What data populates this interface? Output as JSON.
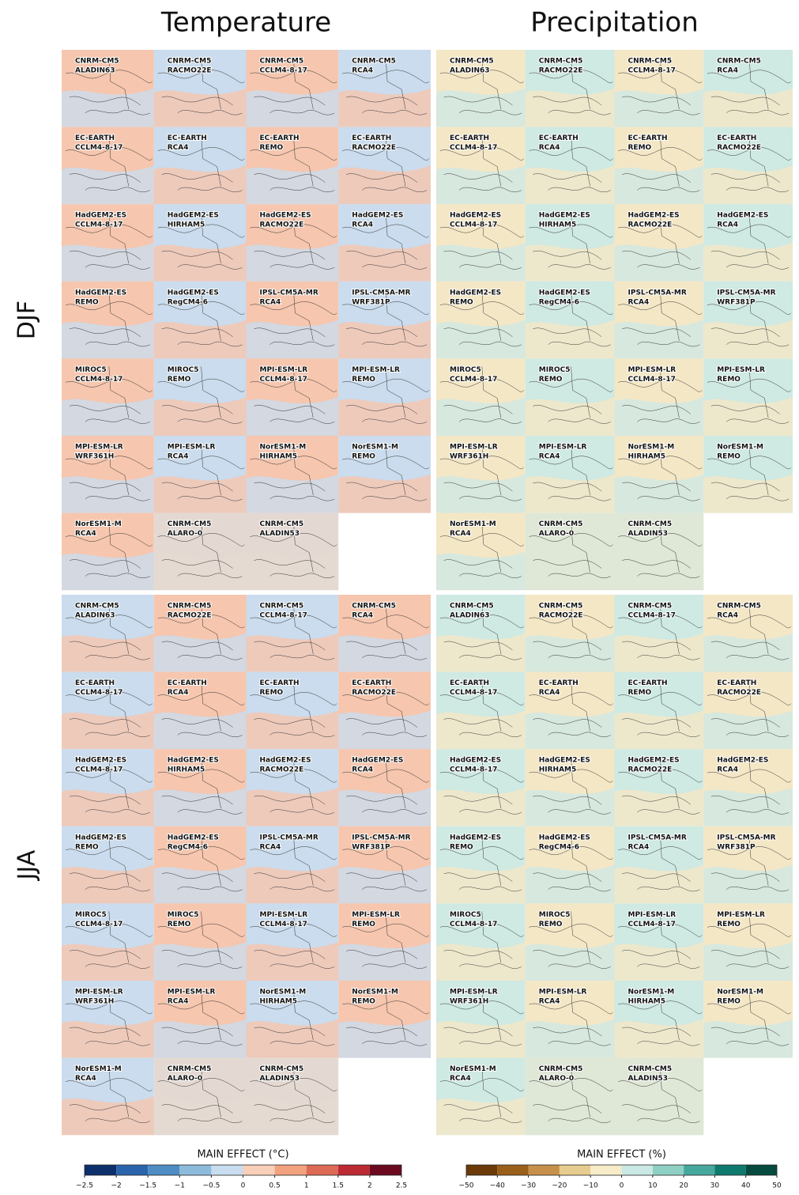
{
  "columns": [
    "Temperature",
    "Precipitation"
  ],
  "rows": [
    "DJF",
    "JJA"
  ],
  "panels": [
    {
      "gcm": "CNRM-CM5",
      "rcm": "ALADIN63"
    },
    {
      "gcm": "CNRM-CM5",
      "rcm": "RACMO22E"
    },
    {
      "gcm": "CNRM-CM5",
      "rcm": "CCLM4-8-17"
    },
    {
      "gcm": "CNRM-CM5",
      "rcm": "RCA4"
    },
    {
      "gcm": "EC-EARTH",
      "rcm": "CCLM4-8-17"
    },
    {
      "gcm": "EC-EARTH",
      "rcm": "RCA4"
    },
    {
      "gcm": "EC-EARTH",
      "rcm": "REMO"
    },
    {
      "gcm": "EC-EARTH",
      "rcm": "RACMO22E"
    },
    {
      "gcm": "HadGEM2-ES",
      "rcm": "CCLM4-8-17"
    },
    {
      "gcm": "HadGEM2-ES",
      "rcm": "HIRHAM5"
    },
    {
      "gcm": "HadGEM2-ES",
      "rcm": "RACMO22E"
    },
    {
      "gcm": "HadGEM2-ES",
      "rcm": "RCA4"
    },
    {
      "gcm": "HadGEM2-ES",
      "rcm": "REMO"
    },
    {
      "gcm": "HadGEM2-ES",
      "rcm": "RegCM4-6"
    },
    {
      "gcm": "IPSL-CM5A-MR",
      "rcm": "RCA4"
    },
    {
      "gcm": "IPSL-CM5A-MR",
      "rcm": "WRF381P"
    },
    {
      "gcm": "MIROC5",
      "rcm": "CCLM4-8-17"
    },
    {
      "gcm": "MIROC5",
      "rcm": "REMO"
    },
    {
      "gcm": "MPI-ESM-LR",
      "rcm": "CCLM4-8-17"
    },
    {
      "gcm": "MPI-ESM-LR",
      "rcm": "REMO"
    },
    {
      "gcm": "MPI-ESM-LR",
      "rcm": "WRF361H"
    },
    {
      "gcm": "MPI-ESM-LR",
      "rcm": "RCA4"
    },
    {
      "gcm": "NorESM1-M",
      "rcm": "HIRHAM5"
    },
    {
      "gcm": "NorESM1-M",
      "rcm": "REMO"
    },
    {
      "gcm": "NorESM1-M",
      "rcm": "RCA4"
    },
    {
      "gcm": "CNRM-CM5",
      "rcm": "ALARO-0"
    },
    {
      "gcm": "CNRM-CM5",
      "rcm": "ALADIN53"
    }
  ],
  "colorbars": [
    {
      "label": "MAIN EFFECT (°C)",
      "lim": [
        -2.5,
        2.5
      ],
      "ticks": [
        {
          "value": -2.5,
          "label": "−2.5"
        },
        {
          "value": -2,
          "label": "−2"
        },
        {
          "value": -1.5,
          "label": "−1.5"
        },
        {
          "value": -1,
          "label": "−1"
        },
        {
          "value": -0.5,
          "label": "−0.5"
        },
        0,
        0.5,
        1,
        1.5,
        2,
        2.5
      ],
      "colors": [
        "#0d2f6b",
        "#2a64ad",
        "#4e8cc4",
        "#8dbbdc",
        "#c8ddef",
        "#f8cfb8",
        "#f2a27f",
        "#dc6a55",
        "#bc2a33",
        "#6b0a1f"
      ]
    },
    {
      "label": "MAIN EFFECT (%)",
      "lim": [
        -50,
        50
      ],
      "ticks": [
        {
          "value": -50,
          "label": "−50"
        },
        {
          "value": -40,
          "label": "−40"
        },
        {
          "value": -30,
          "label": "−30"
        },
        {
          "value": -20,
          "label": "−20"
        },
        {
          "value": -10,
          "label": "−10"
        },
        0,
        10,
        20,
        30,
        40,
        50
      ],
      "colors": [
        "#6b3a08",
        "#9a5f19",
        "#c7904a",
        "#e6cc8e",
        "#f6ecc8",
        "#cbe9e4",
        "#8fd0c4",
        "#46a89c",
        "#0e7a6e",
        "#054a3f"
      ]
    }
  ]
}
